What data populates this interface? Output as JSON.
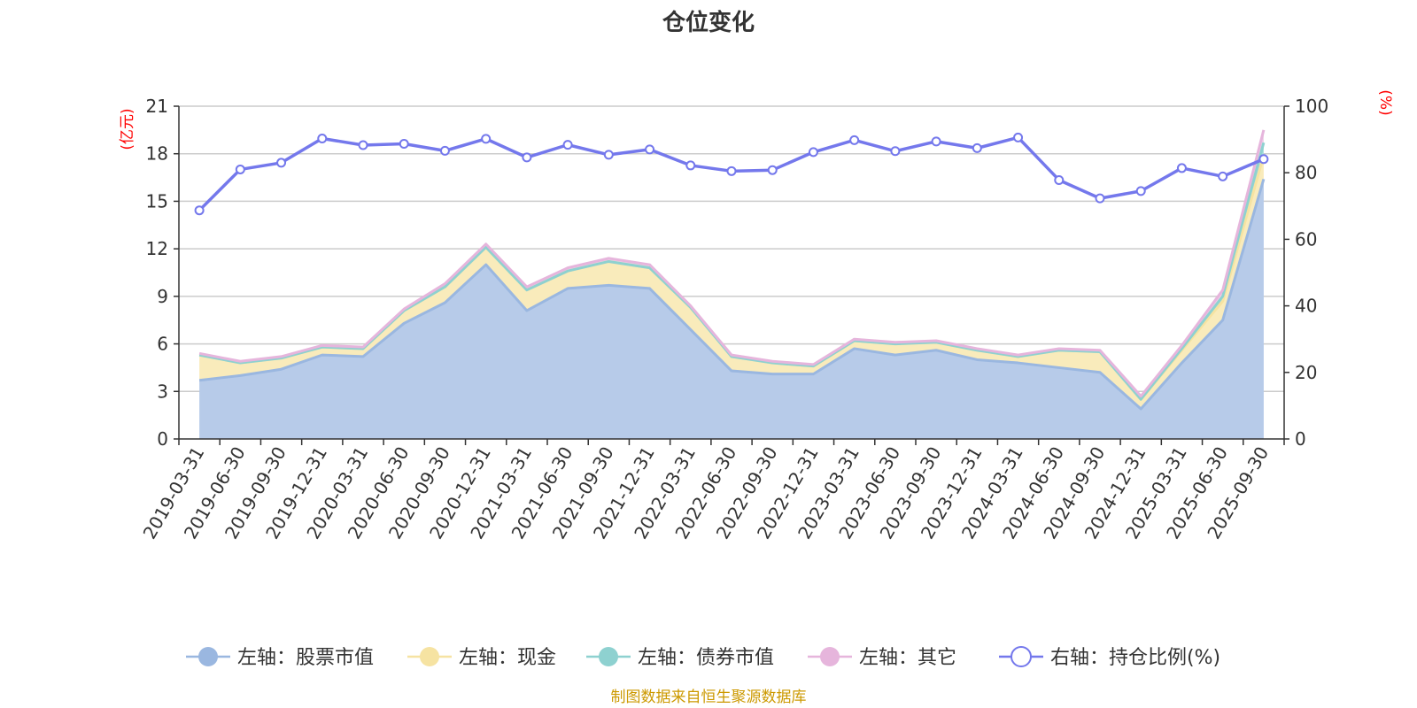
{
  "chart_data": {
    "type": "area",
    "title": "仓位变化",
    "left_unit": "(亿元)",
    "right_unit": "(%)",
    "left_ylim": [
      0,
      21
    ],
    "left_ticks": [
      0,
      3,
      6,
      9,
      12,
      15,
      18,
      21
    ],
    "right_ylim": [
      0,
      100
    ],
    "right_ticks": [
      0,
      20,
      40,
      60,
      80,
      100
    ],
    "grid": true,
    "legend_position": "bottom",
    "categories": [
      "2019-03-31",
      "2019-06-30",
      "2019-09-30",
      "2019-12-31",
      "2020-03-31",
      "2020-06-30",
      "2020-09-30",
      "2020-12-31",
      "2021-03-31",
      "2021-06-30",
      "2021-09-30",
      "2021-12-31",
      "2022-03-31",
      "2022-06-30",
      "2022-09-30",
      "2022-12-31",
      "2023-03-31",
      "2023-06-30",
      "2023-09-30",
      "2023-12-31",
      "2024-03-31",
      "2024-06-30",
      "2024-09-30",
      "2024-12-31",
      "2025-03-31",
      "2025-06-30",
      "2025-09-30"
    ],
    "series": [
      {
        "name": "左轴：股票市值",
        "axis": "left",
        "color": "#9ab7e0",
        "fill": "#b7cbe9",
        "values": [
          3.7,
          4.0,
          4.4,
          5.3,
          5.2,
          7.3,
          8.6,
          11.0,
          8.1,
          9.5,
          9.7,
          9.5,
          6.9,
          4.3,
          4.1,
          4.1,
          5.7,
          5.3,
          5.6,
          5.0,
          4.8,
          4.5,
          4.2,
          1.9,
          4.8,
          7.5,
          16.4
        ]
      },
      {
        "name": "左轴：现金",
        "axis": "left",
        "color": "#f6e3a2",
        "fill": "#f9ebbb",
        "values": [
          1.6,
          0.8,
          0.7,
          0.5,
          0.5,
          0.8,
          1.0,
          1.1,
          1.3,
          1.1,
          1.5,
          1.3,
          1.4,
          0.9,
          0.7,
          0.5,
          0.5,
          0.7,
          0.5,
          0.6,
          0.4,
          1.1,
          1.3,
          0.6,
          0.8,
          1.2,
          1.5
        ]
      },
      {
        "name": "左轴：债券市值",
        "axis": "left",
        "color": "#8ed1d0",
        "fill": "#a9dcdb",
        "values": [
          0,
          0,
          0,
          0,
          0,
          0,
          0,
          0,
          0,
          0,
          0,
          0,
          0,
          0,
          0,
          0,
          0,
          0,
          0,
          0,
          0,
          0,
          0,
          0,
          0.1,
          0.3,
          0.8
        ]
      },
      {
        "name": "左轴：其它",
        "axis": "left",
        "color": "#e6b5dc",
        "fill": "#efd0e8",
        "values": [
          0.1,
          0.1,
          0.1,
          0.1,
          0.1,
          0.1,
          0.2,
          0.2,
          0.2,
          0.2,
          0.2,
          0.2,
          0.1,
          0.1,
          0.1,
          0.1,
          0.1,
          0.1,
          0.1,
          0.1,
          0.1,
          0.1,
          0.1,
          0.2,
          0.2,
          0.4,
          0.8
        ]
      },
      {
        "name": "右轴：持仓比例(%)",
        "axis": "right",
        "color": "#7478ec",
        "values": [
          68.7,
          81.0,
          83.0,
          90.3,
          88.3,
          88.7,
          86.6,
          90.2,
          84.6,
          88.4,
          85.4,
          87.0,
          82.2,
          80.5,
          80.8,
          86.2,
          89.8,
          86.5,
          89.4,
          87.4,
          90.6,
          77.8,
          72.3,
          74.5,
          81.4,
          78.9,
          84.1
        ]
      }
    ]
  },
  "source_note": "制图数据来自恒生聚源数据库",
  "colors": {
    "axis": "#333333",
    "grid": "#cccccc",
    "unit_text": "#ff0000",
    "source_text": "#cc9900"
  }
}
